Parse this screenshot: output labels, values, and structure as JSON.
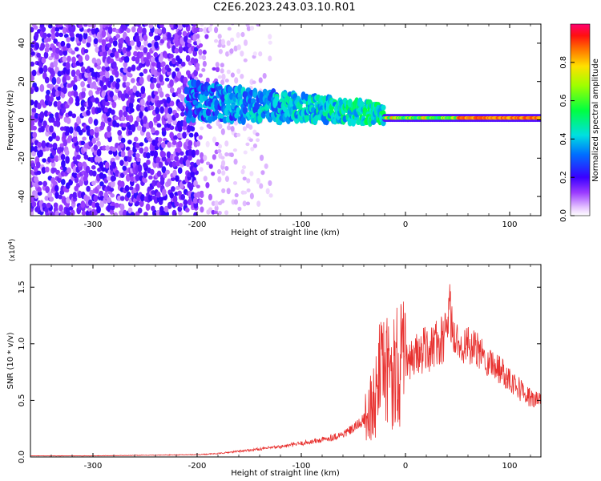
{
  "title": "C2E6.2023.243.03.10.R01",
  "chart_data": [
    {
      "type": "heatmap",
      "name": "spectrogram",
      "xlabel": "Height of straight line (km)",
      "ylabel": "Frequency (Hz)",
      "xlim": [
        -360,
        130
      ],
      "ylim": [
        -50,
        50
      ],
      "xticks": [
        -300,
        -200,
        -100,
        0,
        100
      ],
      "yticks": [
        -40,
        -20,
        0,
        20,
        40
      ],
      "xtick_labels": [
        "-300",
        "-200",
        "-100",
        "0",
        "100"
      ],
      "ytick_labels": [
        "-40",
        "-20",
        "0",
        "20",
        "40"
      ],
      "colorbar": {
        "label": "Normalized spectral amplitude",
        "range": [
          0,
          1
        ],
        "ticks": [
          0.0,
          0.2,
          0.4,
          0.6,
          0.8
        ],
        "tick_labels": [
          "0.0",
          "0.2",
          "0.4",
          "0.6",
          "0.8"
        ]
      },
      "features": [
        {
          "x_range": [
            -360,
            -200
          ],
          "freq_range": [
            -50,
            50
          ],
          "level": 0.08,
          "pattern": "speckle"
        },
        {
          "x_range": [
            -200,
            -130
          ],
          "freq_range": [
            -50,
            50
          ],
          "level": 0.03,
          "pattern": "faint-stripes"
        },
        {
          "x_range": [
            -210,
            -20
          ],
          "freq_center": [
            10,
            3
          ],
          "freq_width": 10,
          "level": 0.3,
          "pattern": "band"
        },
        {
          "x_range": [
            -20,
            130
          ],
          "freq_center": [
            1,
            1
          ],
          "freq_width": 3,
          "level": 0.85,
          "pattern": "narrow-line"
        }
      ]
    },
    {
      "type": "line",
      "name": "snr",
      "xlabel": "Height of straight line (km)",
      "ylabel": "SNR (10 * v/v)",
      "multiplier": "(x10",
      "multiplier_exp": "4",
      "multiplier_close": ")",
      "xlim": [
        -360,
        130
      ],
      "ylim": [
        0,
        1.7
      ],
      "xticks": [
        -300,
        -200,
        -100,
        0,
        100
      ],
      "yticks": [
        0.0,
        0.5,
        1.0,
        1.5
      ],
      "xtick_labels": [
        "-300",
        "-200",
        "-100",
        "0",
        "100"
      ],
      "ytick_labels": [
        "0.0",
        "0.5",
        "1.0",
        "1.5"
      ],
      "color": "#e8312f",
      "series": [
        {
          "x": [
            -360,
            -300,
            -250,
            -200,
            -180,
            -160,
            -140,
            -120,
            -100,
            -80,
            -60,
            -50,
            -40,
            -30,
            -25,
            -20,
            -15,
            -10,
            0,
            10,
            20,
            30,
            35,
            40,
            42,
            44,
            46,
            50,
            60,
            70,
            80,
            90,
            100,
            110,
            120,
            130
          ],
          "values": [
            0.01,
            0.01,
            0.015,
            0.02,
            0.03,
            0.05,
            0.07,
            0.09,
            0.12,
            0.15,
            0.2,
            0.25,
            0.33,
            0.5,
            0.7,
            0.72,
            0.75,
            0.8,
            0.85,
            0.9,
            0.95,
            1.0,
            1.02,
            1.05,
            1.4,
            1.2,
            1.05,
            1.02,
            0.98,
            0.93,
            0.85,
            0.78,
            0.7,
            0.6,
            0.52,
            0.48
          ]
        }
      ]
    }
  ]
}
